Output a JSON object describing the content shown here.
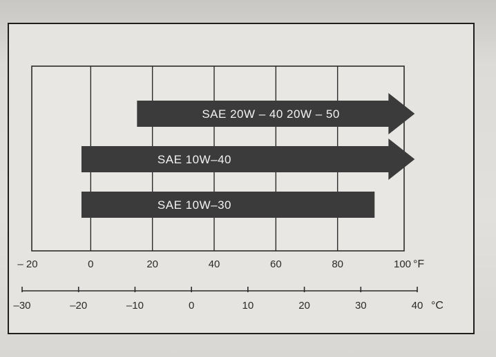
{
  "chart_data": {
    "type": "bar",
    "orientation": "horizontal-range",
    "title": "",
    "xlabel": "",
    "ylabel": "",
    "fahrenheit_axis": {
      "unit": "°F",
      "ticks": [
        -20,
        0,
        20,
        40,
        60,
        80,
        100
      ],
      "tick_labels": [
        "– 20",
        "0",
        "20",
        "40",
        "60",
        "80",
        "100"
      ],
      "xlim": [
        -20,
        100
      ]
    },
    "celsius_axis": {
      "unit": "°C",
      "ticks": [
        -30,
        -20,
        -10,
        0,
        10,
        20,
        30,
        40
      ],
      "tick_labels": [
        "–30",
        "–20",
        "–10",
        "0",
        "10",
        "20",
        "30",
        "40"
      ],
      "xlim": [
        -30,
        40
      ]
    },
    "grid": true,
    "series": [
      {
        "name": "SAE 20W – 40 20W – 50",
        "from_F": 15,
        "to_F": 105,
        "open_ended": true
      },
      {
        "name": "SAE 10W–40",
        "from_F": -3,
        "to_F": 105,
        "open_ended": true
      },
      {
        "name": "SAE 10W–30",
        "from_F": -3,
        "to_F": 92,
        "open_ended": false
      }
    ],
    "colors": {
      "band": "#3b3b3b",
      "grid": "#2a2a2a"
    }
  }
}
